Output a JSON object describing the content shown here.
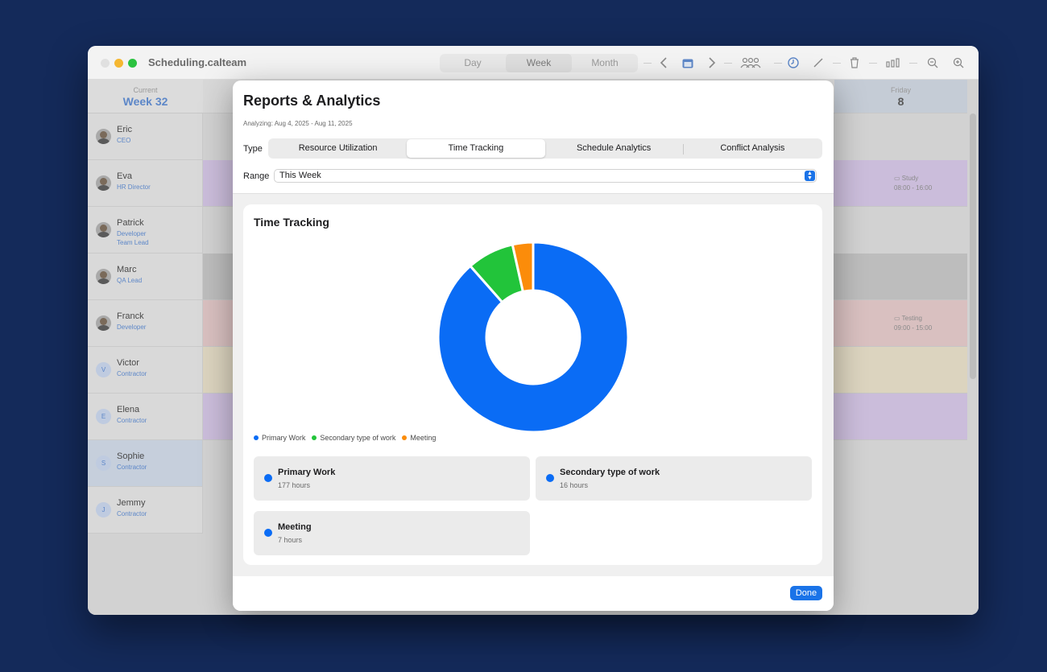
{
  "window": {
    "title": "Scheduling.calteam",
    "views": [
      {
        "label": "Day",
        "active": false
      },
      {
        "label": "Week",
        "active": true
      },
      {
        "label": "Month",
        "active": false
      }
    ]
  },
  "calendar": {
    "current_label": "Current",
    "current_week": "Week 32",
    "friday_label": "Friday",
    "friday_date": "8",
    "people": [
      {
        "name": "Eric",
        "role": "CEO",
        "avatar": "photo",
        "band": "",
        "selected": false
      },
      {
        "name": "Eva",
        "role": "HR Director",
        "avatar": "photo",
        "band": "#cbbddb",
        "selected": false
      },
      {
        "name": "Patrick",
        "role": "Developer\nTeam Lead",
        "avatar": "photo",
        "band": "",
        "selected": false
      },
      {
        "name": "Marc",
        "role": "QA Lead",
        "avatar": "photo",
        "band": "#bdbdbd",
        "selected": false
      },
      {
        "name": "Franck",
        "role": "Developer",
        "avatar": "photo",
        "band": "#d9c0c0",
        "selected": false
      },
      {
        "name": "Victor",
        "role": "Contractor",
        "avatar": "V",
        "band": "#dcd4bf",
        "selected": false
      },
      {
        "name": "Elena",
        "role": "Contractor",
        "avatar": "E",
        "band": "#cbbddb",
        "selected": false
      },
      {
        "name": "Sophie",
        "role": "Contractor",
        "avatar": "S",
        "band": "",
        "selected": true
      },
      {
        "name": "Jemmy",
        "role": "Contractor",
        "avatar": "J",
        "band": "",
        "selected": false
      }
    ],
    "events": [
      {
        "row": 1,
        "title": "Study",
        "time": "08:00 - 16:00"
      },
      {
        "row": 4,
        "title": "Testing",
        "time": "09:00 - 15:00"
      }
    ]
  },
  "modal": {
    "title": "Reports & Analytics",
    "subtitle": "Analyzing: Aug 4, 2025 - Aug 11, 2025",
    "type_label": "Type",
    "tabs": [
      {
        "label": "Resource Utilization",
        "active": false
      },
      {
        "label": "Time Tracking",
        "active": true
      },
      {
        "label": "Schedule Analytics",
        "active": false
      },
      {
        "label": "Conflict Analysis",
        "active": false
      }
    ],
    "range_label": "Range",
    "range_value": "This Week",
    "card_title": "Time Tracking",
    "stats": [
      {
        "title": "Primary Work",
        "value": "177 hours",
        "dot_color": "#0a6cf5"
      },
      {
        "title": "Secondary type of work",
        "value": "16 hours",
        "dot_color": "#0a6cf5"
      },
      {
        "title": "Meeting",
        "value": "7 hours",
        "dot_color": "#0a6cf5"
      }
    ],
    "done_label": "Done"
  },
  "chart_data": {
    "type": "pie",
    "donut": true,
    "categories": [
      "Primary Work",
      "Secondary type of work",
      "Meeting"
    ],
    "values": [
      177,
      16,
      7
    ],
    "unit": "hours",
    "colors": [
      "#0a6cf5",
      "#22c43a",
      "#fb8c0a"
    ],
    "legend": "bottom-left"
  }
}
